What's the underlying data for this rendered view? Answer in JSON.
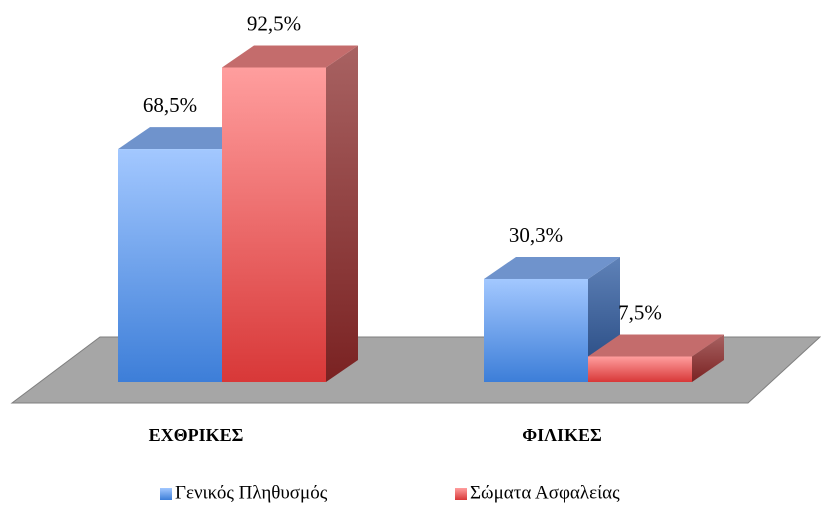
{
  "chart_data": {
    "type": "bar3d",
    "categories": [
      "ΕΧΘΡΙΚΕΣ",
      "ΦΙΛΙΚΕΣ"
    ],
    "series": [
      {
        "name": "Γενικός Πληθυσμός",
        "color": "#4f8fe6",
        "values": [
          68.5,
          30.3
        ],
        "value_labels": [
          "68,5%",
          "30,3%"
        ]
      },
      {
        "name": "Σώματα Ασφαλείας",
        "color": "#e04848",
        "values": [
          92.5,
          7.5
        ],
        "value_labels": [
          "92,5%",
          "7,5%"
        ]
      }
    ]
  }
}
